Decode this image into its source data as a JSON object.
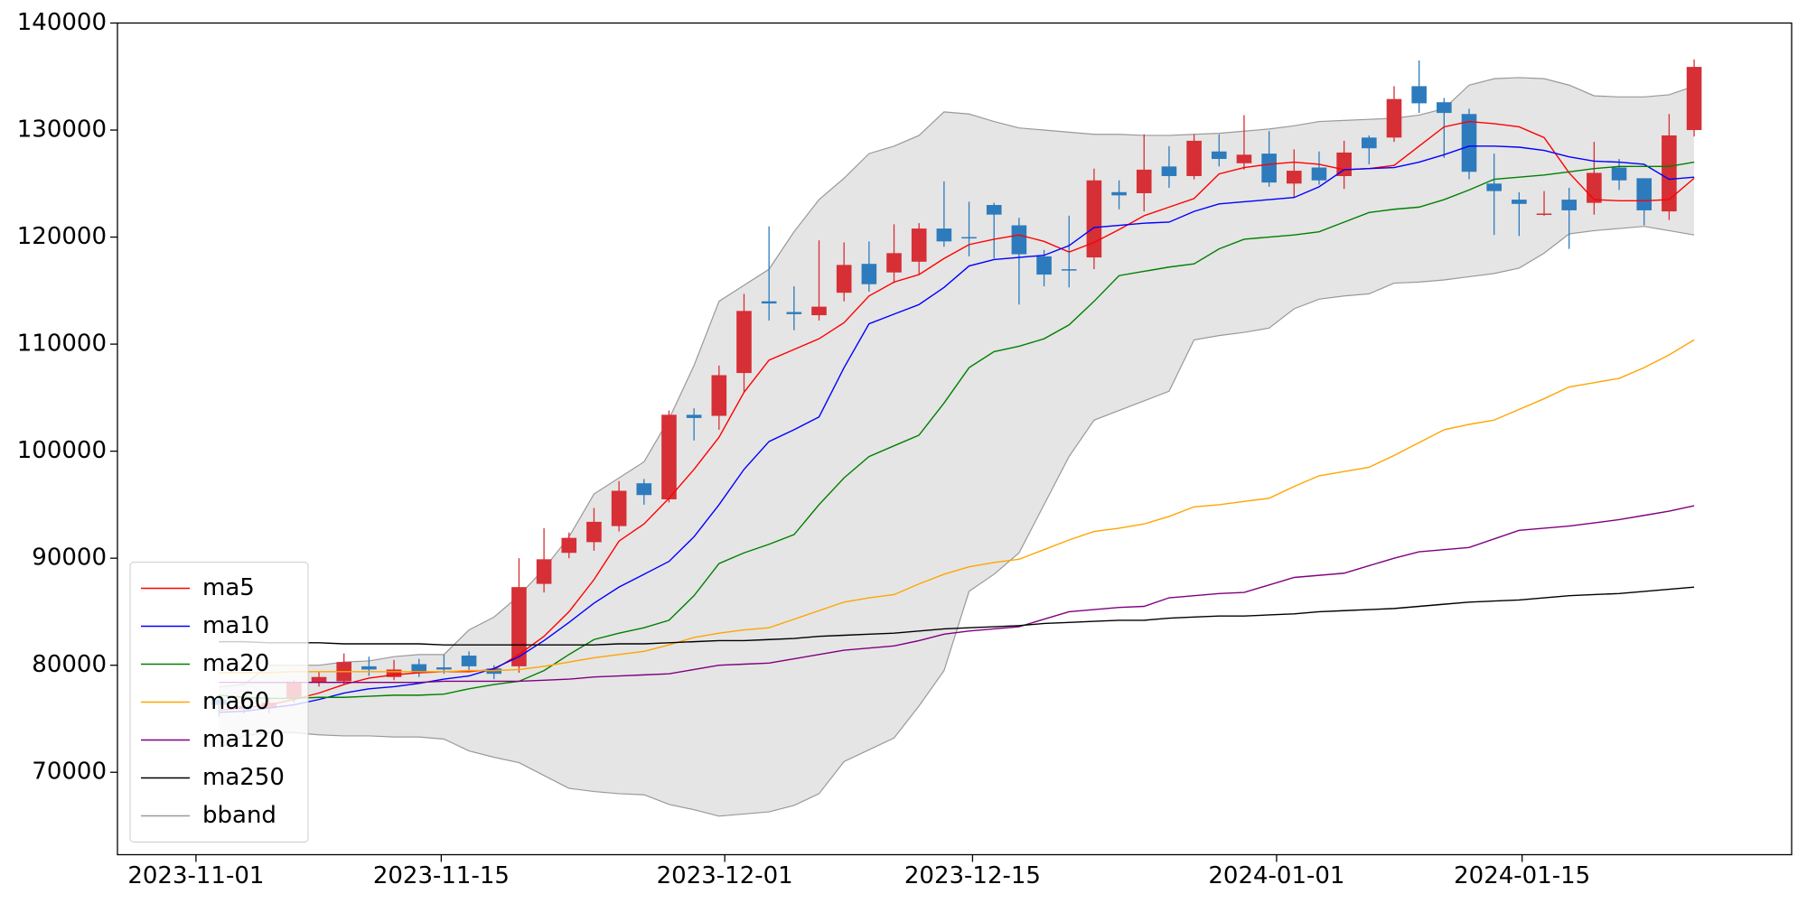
{
  "chart_data": {
    "type": "candlestick",
    "x": [
      "2023-11-02",
      "2023-11-03",
      "2023-11-06",
      "2023-11-07",
      "2023-11-08",
      "2023-11-09",
      "2023-11-10",
      "2023-11-13",
      "2023-11-14",
      "2023-11-15",
      "2023-11-16",
      "2023-11-17",
      "2023-11-20",
      "2023-11-21",
      "2023-11-22",
      "2023-11-23",
      "2023-11-24",
      "2023-11-27",
      "2023-11-28",
      "2023-11-29",
      "2023-11-30",
      "2023-12-01",
      "2023-12-04",
      "2023-12-05",
      "2023-12-06",
      "2023-12-07",
      "2023-12-08",
      "2023-12-11",
      "2023-12-12",
      "2023-12-13",
      "2023-12-14",
      "2023-12-15",
      "2023-12-18",
      "2023-12-19",
      "2023-12-20",
      "2023-12-21",
      "2023-12-22",
      "2023-12-25",
      "2023-12-26",
      "2023-12-27",
      "2023-12-28",
      "2023-12-29",
      "2024-01-01",
      "2024-01-02",
      "2024-01-03",
      "2024-01-04",
      "2024-01-05",
      "2024-01-08",
      "2024-01-09",
      "2024-01-10",
      "2024-01-11",
      "2024-01-12",
      "2024-01-15",
      "2024-01-16",
      "2024-01-17",
      "2024-01-18",
      "2024-01-19",
      "2024-01-22",
      "2024-01-23",
      "2024-01-24"
    ],
    "open": [
      76800,
      76200,
      76000,
      76900,
      78400,
      78500,
      79900,
      78900,
      80100,
      79800,
      80900,
      79700,
      79900,
      87600,
      90500,
      91500,
      93000,
      97000,
      95500,
      103400,
      103300,
      107300,
      114000,
      113000,
      112700,
      114800,
      117500,
      116700,
      117700,
      120800,
      120000,
      123000,
      121100,
      118200,
      117000,
      118100,
      124200,
      124100,
      126600,
      125700,
      128000,
      126900,
      127800,
      125000,
      126500,
      125700,
      129300,
      129300,
      134100,
      132600,
      131500,
      125000,
      123500,
      122100,
      123500,
      123200,
      126500,
      125500,
      122400,
      130000
    ],
    "high": [
      77200,
      76600,
      77000,
      78600,
      79400,
      81100,
      80800,
      80500,
      80600,
      81000,
      81300,
      80000,
      90000,
      92800,
      92400,
      94700,
      97200,
      97400,
      103800,
      104000,
      108000,
      114700,
      121000,
      115400,
      119700,
      119500,
      119600,
      121200,
      121300,
      125200,
      123300,
      123200,
      121800,
      118800,
      122000,
      126400,
      125300,
      129600,
      128500,
      129600,
      129600,
      131400,
      129900,
      128200,
      128000,
      129000,
      129500,
      134100,
      136500,
      133000,
      132000,
      127800,
      124200,
      124300,
      124600,
      128900,
      127300,
      125500,
      131500,
      136600
    ],
    "low": [
      75200,
      75500,
      75500,
      76500,
      78000,
      78200,
      79000,
      78600,
      78900,
      79200,
      79500,
      78700,
      79300,
      86800,
      90000,
      90700,
      92500,
      95000,
      95200,
      101000,
      102000,
      105500,
      112200,
      111300,
      112200,
      114000,
      114900,
      115700,
      116500,
      119100,
      118200,
      118000,
      113700,
      115400,
      115300,
      117000,
      122600,
      122400,
      124600,
      125400,
      126600,
      126300,
      124700,
      123700,
      124900,
      124500,
      126800,
      128900,
      131600,
      127400,
      125400,
      120200,
      120100,
      122000,
      118900,
      122100,
      124400,
      121100,
      121600,
      129400
    ],
    "close": [
      76300,
      75900,
      76500,
      78400,
      78900,
      80300,
      79600,
      79600,
      79300,
      79600,
      79900,
      79200,
      87300,
      89900,
      91900,
      93400,
      96300,
      95900,
      103400,
      103100,
      107100,
      113100,
      113800,
      112800,
      113500,
      117400,
      115600,
      118500,
      120800,
      119600,
      119900,
      122100,
      118400,
      116500,
      116900,
      125300,
      123900,
      126300,
      125700,
      129000,
      127300,
      127700,
      125100,
      126200,
      125300,
      127900,
      128300,
      132900,
      132500,
      131600,
      126100,
      124300,
      123100,
      122200,
      122500,
      126000,
      125300,
      122500,
      129500,
      135900
    ],
    "up_color": "#d62f35",
    "down_color": "#2d7bbd",
    "series": [
      {
        "name": "ma5",
        "color": "red",
        "values": [
          75800,
          76000,
          76300,
          76800,
          77400,
          78200,
          78800,
          79100,
          79300,
          79400,
          79400,
          79600,
          81000,
          82700,
          85000,
          88000,
          91600,
          93200,
          95600,
          98300,
          101300,
          105500,
          108500,
          109500,
          110500,
          112000,
          114500,
          115800,
          116500,
          118000,
          119300,
          119800,
          120200,
          119600,
          118600,
          119500,
          120700,
          122000,
          122800,
          123600,
          125900,
          126500,
          126800,
          127000,
          126800,
          126300,
          126400,
          126700,
          128500,
          130300,
          130800,
          130600,
          130300,
          129300,
          126000,
          123500,
          123400,
          123400,
          123500,
          125500
        ]
      },
      {
        "name": "ma10",
        "color": "blue",
        "values": [
          75600,
          75700,
          76000,
          76300,
          76800,
          77400,
          77800,
          78000,
          78300,
          78700,
          79000,
          79700,
          80800,
          82300,
          84000,
          85800,
          87300,
          88500,
          89700,
          92000,
          95000,
          98300,
          100900,
          102000,
          103200,
          107800,
          111900,
          112800,
          113700,
          115300,
          117300,
          117900,
          118100,
          118300,
          119200,
          120900,
          121100,
          121300,
          121400,
          122400,
          123100,
          123300,
          123500,
          123700,
          124700,
          126300,
          126400,
          126500,
          127000,
          127700,
          128500,
          128500,
          128400,
          128100,
          127500,
          127100,
          127000,
          126800,
          125400,
          125600
        ]
      },
      {
        "name": "ma20",
        "color": "green",
        "values": [
          77200,
          77000,
          76900,
          76900,
          77000,
          77000,
          77100,
          77200,
          77200,
          77300,
          77800,
          78200,
          78500,
          79500,
          81000,
          82400,
          83000,
          83500,
          84200,
          86500,
          89500,
          90500,
          91300,
          92200,
          95000,
          97500,
          99500,
          100500,
          101500,
          104500,
          107800,
          109300,
          109800,
          110500,
          111800,
          114000,
          116400,
          116800,
          117200,
          117500,
          118900,
          119800,
          120000,
          120200,
          120500,
          121400,
          122300,
          122600,
          122800,
          123500,
          124400,
          125400,
          125600,
          125800,
          126100,
          126400,
          126600,
          126600,
          126600,
          127000
        ]
      },
      {
        "name": "ma60",
        "color": "orange",
        "values": [
          79300,
          79300,
          79300,
          79400,
          79400,
          79400,
          79400,
          79400,
          79400,
          79400,
          79500,
          79500,
          79600,
          79900,
          80300,
          80700,
          81000,
          81300,
          81900,
          82600,
          83000,
          83300,
          83500,
          84300,
          85100,
          85900,
          86300,
          86600,
          87600,
          88500,
          89200,
          89600,
          89900,
          90800,
          91700,
          92500,
          92800,
          93200,
          93900,
          94800,
          95000,
          95300,
          95600,
          96700,
          97700,
          98100,
          98500,
          99600,
          100800,
          102000,
          102500,
          102900,
          103900,
          104900,
          106000,
          106400,
          106800,
          107800,
          109000,
          110400
        ]
      },
      {
        "name": "ma120",
        "color": "purple",
        "values": [
          78400,
          78400,
          78400,
          78400,
          78400,
          78400,
          78400,
          78400,
          78400,
          78500,
          78500,
          78500,
          78500,
          78600,
          78700,
          78900,
          79000,
          79100,
          79200,
          79600,
          80000,
          80100,
          80200,
          80600,
          81000,
          81400,
          81600,
          81800,
          82300,
          82900,
          83200,
          83400,
          83600,
          84300,
          85000,
          85200,
          85400,
          85500,
          86300,
          86500,
          86700,
          86800,
          87500,
          88200,
          88400,
          88600,
          89300,
          90000,
          90600,
          90800,
          91000,
          91800,
          92600,
          92800,
          93000,
          93300,
          93600,
          94000,
          94400,
          94900
        ]
      },
      {
        "name": "ma250",
        "color": "black",
        "values": [
          82200,
          82200,
          82100,
          82100,
          82100,
          82000,
          82000,
          82000,
          82000,
          81900,
          81900,
          81900,
          81900,
          81900,
          81900,
          81900,
          82000,
          82000,
          82100,
          82200,
          82300,
          82300,
          82400,
          82500,
          82700,
          82800,
          82900,
          83000,
          83200,
          83400,
          83500,
          83600,
          83700,
          83900,
          84000,
          84100,
          84200,
          84200,
          84400,
          84500,
          84600,
          84600,
          84700,
          84800,
          85000,
          85100,
          85200,
          85300,
          85500,
          85700,
          85900,
          86000,
          86100,
          86300,
          86500,
          86600,
          86700,
          86900,
          87100,
          87300
        ]
      }
    ],
    "band": {
      "name": "bband",
      "color": "#999999",
      "fill": "#e5e5e5",
      "upper": [
        78000,
        78200,
        80000,
        80000,
        80000,
        80300,
        80400,
        80800,
        81000,
        81000,
        83300,
        84500,
        86500,
        89000,
        92000,
        96000,
        97500,
        99000,
        103000,
        108000,
        114000,
        115500,
        117000,
        120500,
        123500,
        125500,
        127800,
        128500,
        129500,
        131700,
        131500,
        130800,
        130200,
        130000,
        129800,
        129600,
        129600,
        129500,
        129500,
        129600,
        129700,
        129900,
        130100,
        130400,
        130800,
        130900,
        131000,
        131100,
        131400,
        132000,
        134200,
        134800,
        134900,
        134800,
        134200,
        133200,
        133100,
        133100,
        133300,
        134100
      ],
      "lower": [
        72300,
        73400,
        73700,
        73700,
        73500,
        73400,
        73400,
        73300,
        73300,
        73100,
        72000,
        71400,
        70900,
        69700,
        68500,
        68200,
        68000,
        67900,
        67000,
        66500,
        65900,
        66100,
        66300,
        66900,
        68000,
        71000,
        72100,
        73200,
        76200,
        79500,
        86900,
        88500,
        90500,
        95000,
        99500,
        102900,
        103800,
        104700,
        105600,
        110400,
        110800,
        111100,
        111500,
        113300,
        114200,
        114500,
        114700,
        115700,
        115800,
        116000,
        116300,
        116600,
        117100,
        118500,
        120300,
        120600,
        120800,
        121000,
        120600,
        120200
      ]
    },
    "xlim": [
      -4.06,
      62.9
    ],
    "xticks": [
      {
        "value": -0.92,
        "label": "2023-11-01"
      },
      {
        "value": 8.89,
        "label": "2023-11-15"
      },
      {
        "value": 20.23,
        "label": "2023-12-01"
      },
      {
        "value": 30.14,
        "label": "2023-12-15"
      },
      {
        "value": 42.3,
        "label": "2024-01-01"
      },
      {
        "value": 52.12,
        "label": "2024-01-15"
      }
    ],
    "ylim": [
      62300,
      140000
    ],
    "yticks": [
      70000,
      80000,
      90000,
      100000,
      110000,
      120000,
      130000,
      140000
    ],
    "legend": "lower left"
  }
}
